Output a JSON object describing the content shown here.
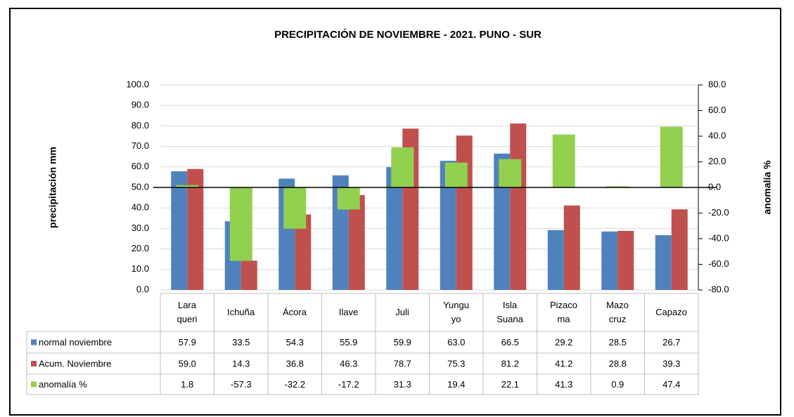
{
  "chart_data": {
    "type": "bar",
    "title": "PRECIPITACIÓN DE NOVIEMBRE - 2021. PUNO - SUR",
    "y_label": "precipitación mm",
    "y2_label": "anomalía %",
    "categories": [
      "Lara\nqueri",
      "Ichuña",
      "Ácora",
      "Ilave",
      "Juli",
      "Yungu\nyo",
      "Isla\nSuana",
      "Pizaco\nma",
      "Mazo\ncruz",
      "Capazo"
    ],
    "series": [
      {
        "name": "normal noviembre",
        "color": "#4f81bd",
        "values": [
          57.9,
          33.5,
          54.3,
          55.9,
          59.9,
          63.0,
          66.5,
          29.2,
          28.5,
          26.7
        ],
        "value_labels": [
          "57.9",
          "33.5",
          "54.3",
          "55.9",
          "59.9",
          "63.0",
          "66.5",
          "29.2",
          "28.5",
          "26.7"
        ]
      },
      {
        "name": "Acum. Noviembre",
        "color": "#c0504d",
        "values": [
          59.0,
          14.3,
          36.8,
          46.3,
          78.7,
          75.3,
          81.2,
          41.2,
          28.8,
          39.3
        ],
        "value_labels": [
          "59.0",
          "14.3",
          "36.8",
          "46.3",
          "78.7",
          "75.3",
          "81.2",
          "41.2",
          "28.8",
          "39.3"
        ]
      },
      {
        "name": "anomalía %",
        "color": "#92d050",
        "axis": "y2",
        "values": [
          1.8,
          -57.3,
          -32.2,
          -17.2,
          31.3,
          19.4,
          22.1,
          41.3,
          0.9,
          47.4
        ],
        "value_labels": [
          "1.8",
          "-57.3",
          "-32.2",
          "-17.2",
          "31.3",
          "19.4",
          "22.1",
          "41.3",
          "0.9",
          "47.4"
        ]
      }
    ],
    "ylim": [
      0,
      100
    ],
    "yticks": [
      {
        "value": 0,
        "label": "0.0"
      },
      {
        "value": 10,
        "label": "10.0"
      },
      {
        "value": 20,
        "label": "20.0"
      },
      {
        "value": 30,
        "label": "30.0"
      },
      {
        "value": 40,
        "label": "40.0"
      },
      {
        "value": 50,
        "label": "50.0"
      },
      {
        "value": 60,
        "label": "60.0"
      },
      {
        "value": 70,
        "label": "70.0"
      },
      {
        "value": 80,
        "label": "80.0"
      },
      {
        "value": 90,
        "label": "90.0"
      },
      {
        "value": 100,
        "label": "100.0"
      }
    ],
    "y2lim": [
      -80,
      80
    ],
    "y2ticks": [
      {
        "value": -80,
        "label": "-80.0"
      },
      {
        "value": -60,
        "label": "-60.0"
      },
      {
        "value": -40,
        "label": "-40.0"
      },
      {
        "value": -20,
        "label": "-20.0"
      },
      {
        "value": 0,
        "label": "0.0"
      },
      {
        "value": 20,
        "label": "20.0"
      },
      {
        "value": 40,
        "label": "40.0"
      },
      {
        "value": 60,
        "label": "60.0"
      },
      {
        "value": 80,
        "label": "80.0"
      }
    ],
    "y2_negative_tick_color": "#ff0000",
    "grid": true
  }
}
